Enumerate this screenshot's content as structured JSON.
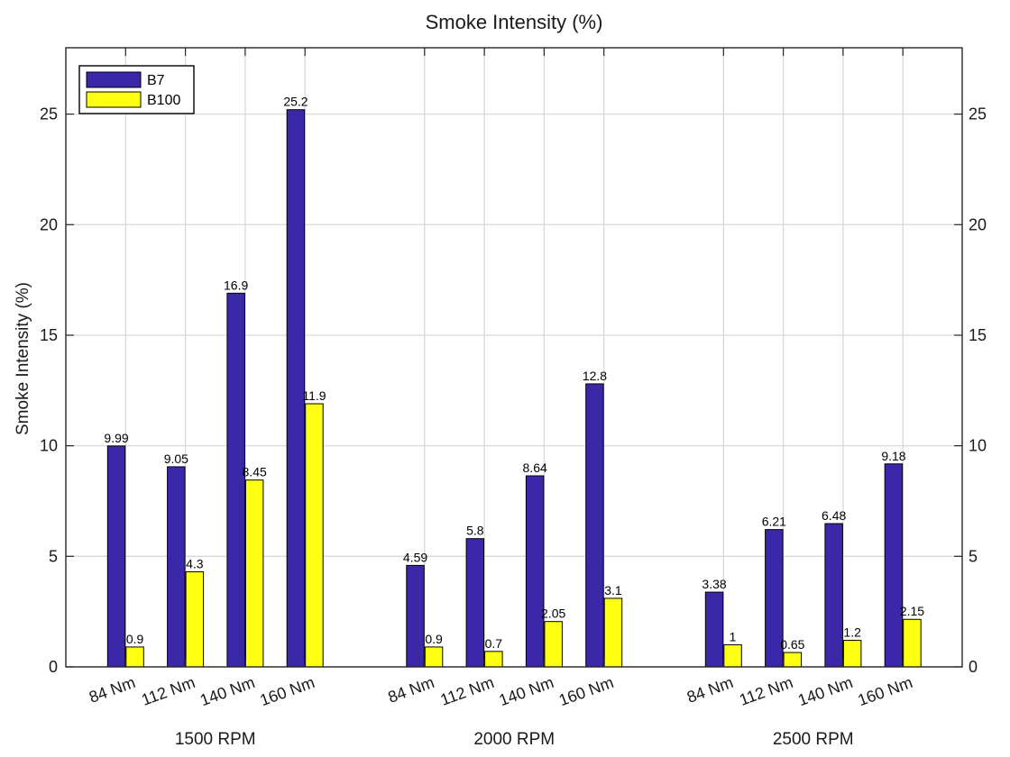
{
  "chart_data": {
    "type": "bar",
    "title": "Smoke Intensity (%)",
    "xlabel": "",
    "ylabel": "Smoke Intensity (%)",
    "ylim": [
      0,
      28
    ],
    "yticks": [
      "0",
      "5",
      "10",
      "15",
      "20",
      "25"
    ],
    "grid": true,
    "legend_position": "top-left",
    "groups": [
      {
        "label": "1500 RPM",
        "categories": [
          "84 Nm",
          "112 Nm",
          "140 Nm",
          "160 Nm"
        ],
        "series": [
          {
            "name": "B7",
            "values": [
              9.99,
              9.05,
              16.9,
              25.2
            ],
            "labels": [
              "9.99",
              "9.05",
              "16.9",
              "25.2"
            ]
          },
          {
            "name": "B100",
            "values": [
              0.9,
              4.3,
              8.45,
              11.9
            ],
            "labels": [
              "0.9",
              "4.3",
              "8.45",
              "11.9"
            ]
          }
        ]
      },
      {
        "label": "2000 RPM",
        "categories": [
          "84 Nm",
          "112 Nm",
          "140 Nm",
          "160 Nm"
        ],
        "series": [
          {
            "name": "B7",
            "values": [
              4.59,
              5.8,
              8.64,
              12.8
            ],
            "labels": [
              "4.59",
              "5.8",
              "8.64",
              "12.8"
            ]
          },
          {
            "name": "B100",
            "values": [
              0.9,
              0.7,
              2.05,
              3.1
            ],
            "labels": [
              "0.9",
              "0.7",
              "2.05",
              "3.1"
            ]
          }
        ]
      },
      {
        "label": "2500 RPM",
        "categories": [
          "84 Nm",
          "112 Nm",
          "140 Nm",
          "160 Nm"
        ],
        "series": [
          {
            "name": "B7",
            "values": [
              3.38,
              6.21,
              6.48,
              9.18
            ],
            "labels": [
              "3.38",
              "6.21",
              "6.48",
              "9.18"
            ]
          },
          {
            "name": "B100",
            "values": [
              1,
              0.65,
              1.2,
              2.15
            ],
            "labels": [
              "1",
              "0.65",
              "1.2",
              "2.15"
            ]
          }
        ]
      }
    ],
    "colors": {
      "B7": "#3b28a8",
      "B100": "#ffff14",
      "grid": "#d9d9d9",
      "axis": "#262626"
    }
  }
}
